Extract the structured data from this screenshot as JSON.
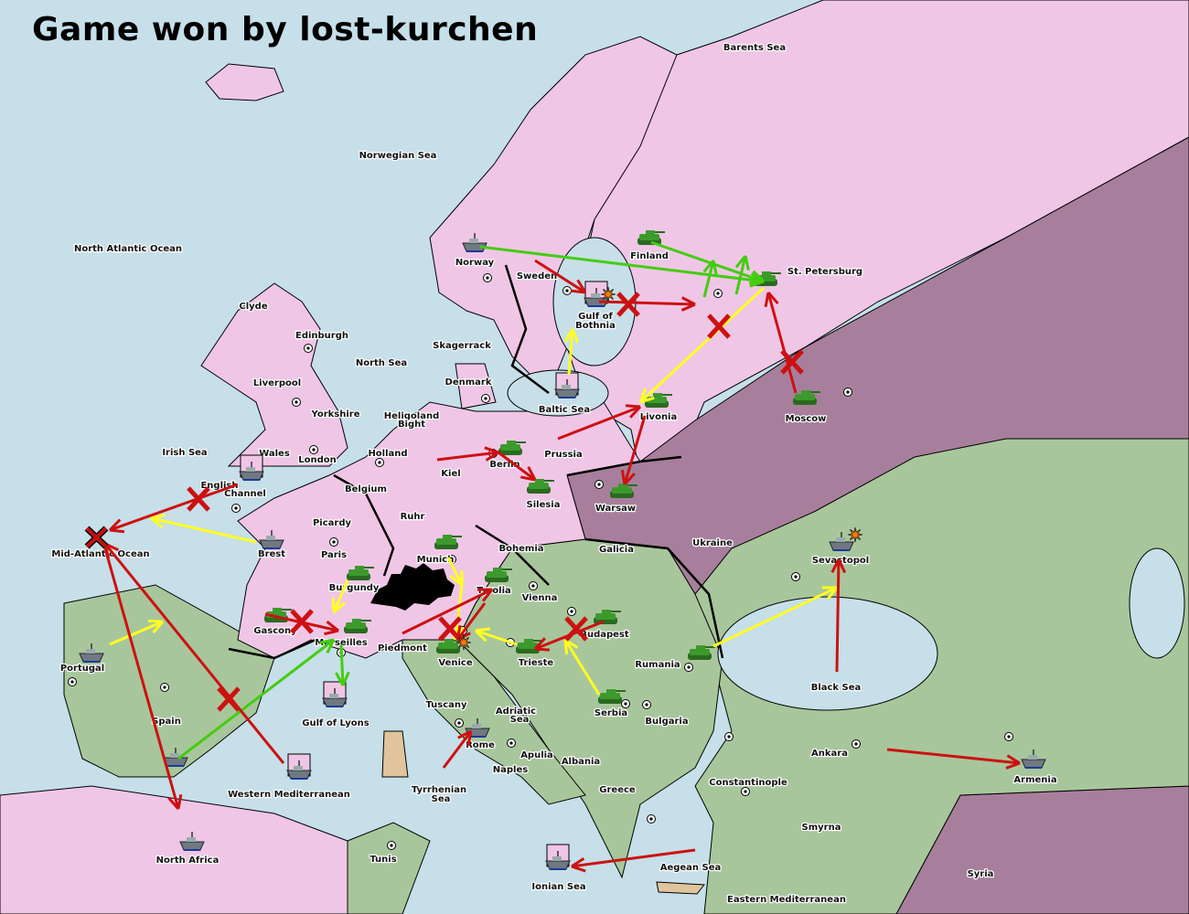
{
  "title": "Game won by lost-kurchen",
  "colors": {
    "sea": "#c6dfe9",
    "power_pink": "#f0c6e6",
    "power_purple": "#a77f9c",
    "power_green": "#a8c69b",
    "neutral": "#e0c49c",
    "order_move": "#cc1111",
    "order_support": "#ffff22",
    "order_convoy_support": "#44cc11",
    "unit_army": "#3c9a2c",
    "unit_fleet": "#707880"
  },
  "provinces": [
    "Barents Sea",
    "Norwegian Sea",
    "North Atlantic Ocean",
    "Norway",
    "Finland",
    "St. Petersburg",
    "Sweden",
    "Gulf of",
    "Bothnia",
    "Clyde",
    "Edinburgh",
    "Skagerrack",
    "North Sea",
    "Liverpool",
    "Denmark",
    "Baltic Sea",
    "Yorkshire",
    "Heligoland",
    "Bight",
    "Livonia",
    "Moscow",
    "Irish Sea",
    "Wales",
    "Holland",
    "Prussia",
    "London",
    "Kiel",
    "Berlin",
    "English",
    "Channel",
    "Belgium",
    "Silesia",
    "Warsaw",
    "Ruhr",
    "Picardy",
    "Mid-Atlantic Ocean",
    "Brest",
    "Paris",
    "Bohemia",
    "Galicia",
    "Ukraine",
    "Munich",
    "Sevastopol",
    "Burgundy",
    "Tyrolia",
    "Vienna",
    "Gascony",
    "Budapest",
    "Marseilles",
    "Piedmont",
    "Portugal",
    "Venice",
    "Trieste",
    "Rumania",
    "Black Sea",
    "Tuscany",
    "Adriatic",
    "Sea",
    "Serbia",
    "Bulgaria",
    "Spain",
    "Gulf of Lyons",
    "Rome",
    "Apulia",
    "Albania",
    "Ankara",
    "Naples",
    "Armenia",
    "Constantinople",
    "Tyrrhenian",
    "Sea",
    "Greece",
    "Western Mediterranean",
    "Smyrna",
    "North Africa",
    "Tunis",
    "Aegean Sea",
    "Syria",
    "Ionian Sea",
    "Eastern Mediterranean"
  ],
  "units": [
    {
      "type": "fleet",
      "province": "Norway"
    },
    {
      "type": "army",
      "province": "Finland"
    },
    {
      "type": "army",
      "province": "St. Petersburg"
    },
    {
      "type": "fleet",
      "province": "Gulf of Bothnia",
      "dislodged": true
    },
    {
      "type": "fleet",
      "province": "Baltic Sea",
      "dislodged": true
    },
    {
      "type": "army",
      "province": "Moscow"
    },
    {
      "type": "army",
      "province": "Livonia"
    },
    {
      "type": "army",
      "province": "Berlin"
    },
    {
      "type": "army",
      "province": "Silesia"
    },
    {
      "type": "army",
      "province": "Warsaw"
    },
    {
      "type": "fleet",
      "province": "English Channel",
      "dislodged": true
    },
    {
      "type": "fleet",
      "province": "Brest"
    },
    {
      "type": "army",
      "province": "Munich"
    },
    {
      "type": "army",
      "province": "Tyrolia"
    },
    {
      "type": "army",
      "province": "Burgundy"
    },
    {
      "type": "army",
      "province": "Gascony"
    },
    {
      "type": "army",
      "province": "Marseilles"
    },
    {
      "type": "army",
      "province": "Budapest"
    },
    {
      "type": "army",
      "province": "Venice"
    },
    {
      "type": "army",
      "province": "Trieste"
    },
    {
      "type": "army",
      "province": "Serbia"
    },
    {
      "type": "army",
      "province": "Rumania"
    },
    {
      "type": "fleet",
      "province": "Sevastopol"
    },
    {
      "type": "fleet",
      "province": "Portugal"
    },
    {
      "type": "fleet",
      "province": "Gulf of Lyons",
      "dislodged": true
    },
    {
      "type": "fleet",
      "province": "Spain"
    },
    {
      "type": "fleet",
      "province": "Western Mediterranean",
      "dislodged": true
    },
    {
      "type": "fleet",
      "province": "Rome"
    },
    {
      "type": "fleet",
      "province": "North Africa"
    },
    {
      "type": "fleet",
      "province": "Armenia"
    },
    {
      "type": "fleet",
      "province": "Ionian Sea",
      "dislodged": true
    }
  ]
}
